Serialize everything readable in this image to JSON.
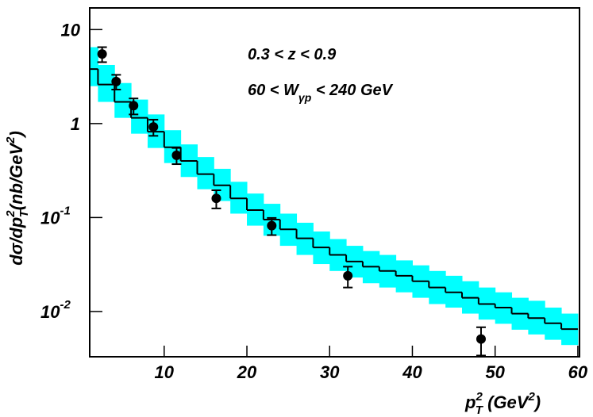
{
  "chart_data": {
    "type": "scatter",
    "log_y": true,
    "annotations": [
      [
        "0.3 < z < 0.9"
      ],
      [
        "60 < W",
        "γp",
        " < 240 GeV"
      ]
    ],
    "x_label": [
      "p",
      "2",
      "T",
      " (GeV",
      "2",
      ")"
    ],
    "y_label": [
      "dσ/dp",
      "2",
      "T",
      "(nb/GeV",
      "2",
      ")"
    ],
    "xlim": [
      1,
      60.2
    ],
    "ylim": [
      0.0033,
      17
    ],
    "xticks": [
      10,
      20,
      30,
      40,
      50,
      60
    ],
    "yticks": [
      {
        "value": 10,
        "label": "10"
      },
      {
        "value": 1,
        "label": "1"
      },
      {
        "value": 0.1,
        "label": "10",
        "exponent": "-1"
      },
      {
        "value": 0.01,
        "label": "10",
        "exponent": "-2"
      }
    ],
    "points": {
      "color": "#000000",
      "x": [
        2.5,
        4.2,
        6.3,
        8.7,
        11.5,
        16.3,
        23,
        32.2,
        48.3
      ],
      "y": [
        5.5,
        2.8,
        1.55,
        0.92,
        0.46,
        0.16,
        0.082,
        0.024,
        0.0051
      ],
      "err": [
        1.0,
        0.5,
        0.3,
        0.18,
        0.09,
        0.035,
        0.017,
        0.006,
        0.0017
      ]
    },
    "prediction": {
      "color": "#000000",
      "band_color": "#00ffff",
      "bins": [
        0,
        2,
        4,
        6,
        8,
        10,
        12,
        14,
        16,
        18,
        20,
        22,
        24,
        26,
        28,
        30,
        32,
        34,
        36,
        38,
        40,
        42,
        44,
        46,
        48,
        50,
        52,
        54,
        56,
        58,
        60
      ],
      "values": [
        3.8,
        2.6,
        1.7,
        1.15,
        0.82,
        0.56,
        0.4,
        0.29,
        0.22,
        0.16,
        0.12,
        0.095,
        0.075,
        0.06,
        0.048,
        0.04,
        0.034,
        0.03,
        0.027,
        0.024,
        0.021,
        0.018,
        0.016,
        0.014,
        0.012,
        0.011,
        0.0095,
        0.0085,
        0.0075,
        0.0065
      ],
      "upper": [
        6.5,
        4.2,
        2.7,
        1.8,
        1.25,
        0.85,
        0.6,
        0.44,
        0.33,
        0.24,
        0.18,
        0.14,
        0.11,
        0.088,
        0.071,
        0.059,
        0.05,
        0.044,
        0.04,
        0.035,
        0.031,
        0.027,
        0.024,
        0.021,
        0.018,
        0.016,
        0.014,
        0.013,
        0.011,
        0.0095
      ],
      "lower": [
        2.5,
        1.7,
        1.15,
        0.78,
        0.55,
        0.38,
        0.27,
        0.2,
        0.15,
        0.11,
        0.082,
        0.064,
        0.05,
        0.04,
        0.032,
        0.027,
        0.023,
        0.02,
        0.018,
        0.016,
        0.014,
        0.012,
        0.011,
        0.0095,
        0.0082,
        0.0074,
        0.0064,
        0.0057,
        0.005,
        0.0044
      ]
    }
  }
}
